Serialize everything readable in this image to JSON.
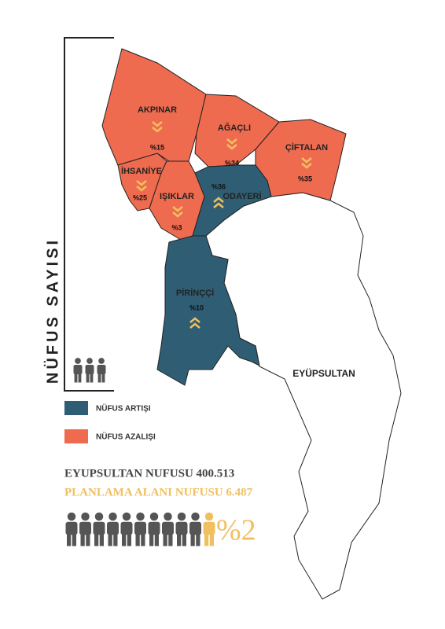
{
  "title": "NÜFUS SAYISI",
  "regions": [
    {
      "name": "AKPINAR",
      "label": "%15",
      "color": "#ef6b4f"
    },
    {
      "name": "AĞAÇLI",
      "label": "%34",
      "color": "#ef6b4f"
    },
    {
      "name": "ÇİFTALAN",
      "label": "%35",
      "color": "#ef6b4f"
    },
    {
      "name": "İHSANİYE",
      "label": "%25",
      "color": "#ef6b4f"
    },
    {
      "name": "IŞIKLAR",
      "label": "%3",
      "color": "#ef6b4f"
    },
    {
      "name": "ODAYERİ",
      "label": "%36",
      "color": "#2f5e74"
    },
    {
      "name": "PİRİNÇÇİ",
      "label": "%10",
      "color": "#2f5e74"
    }
  ],
  "district": {
    "name": "EYÜPSULTAN"
  },
  "legend": [
    {
      "label": "NÜFUS ARTIŞI",
      "color": "#2f5e74"
    },
    {
      "label": "NÜFUS AZALIŞI",
      "color": "#ef6b4f"
    }
  ],
  "stats": {
    "total": "EYUPSULTAN NUFUSU 400.513",
    "planning": "PLANLAMA ALANI NUFUSU 6.487",
    "share": "%2"
  }
}
